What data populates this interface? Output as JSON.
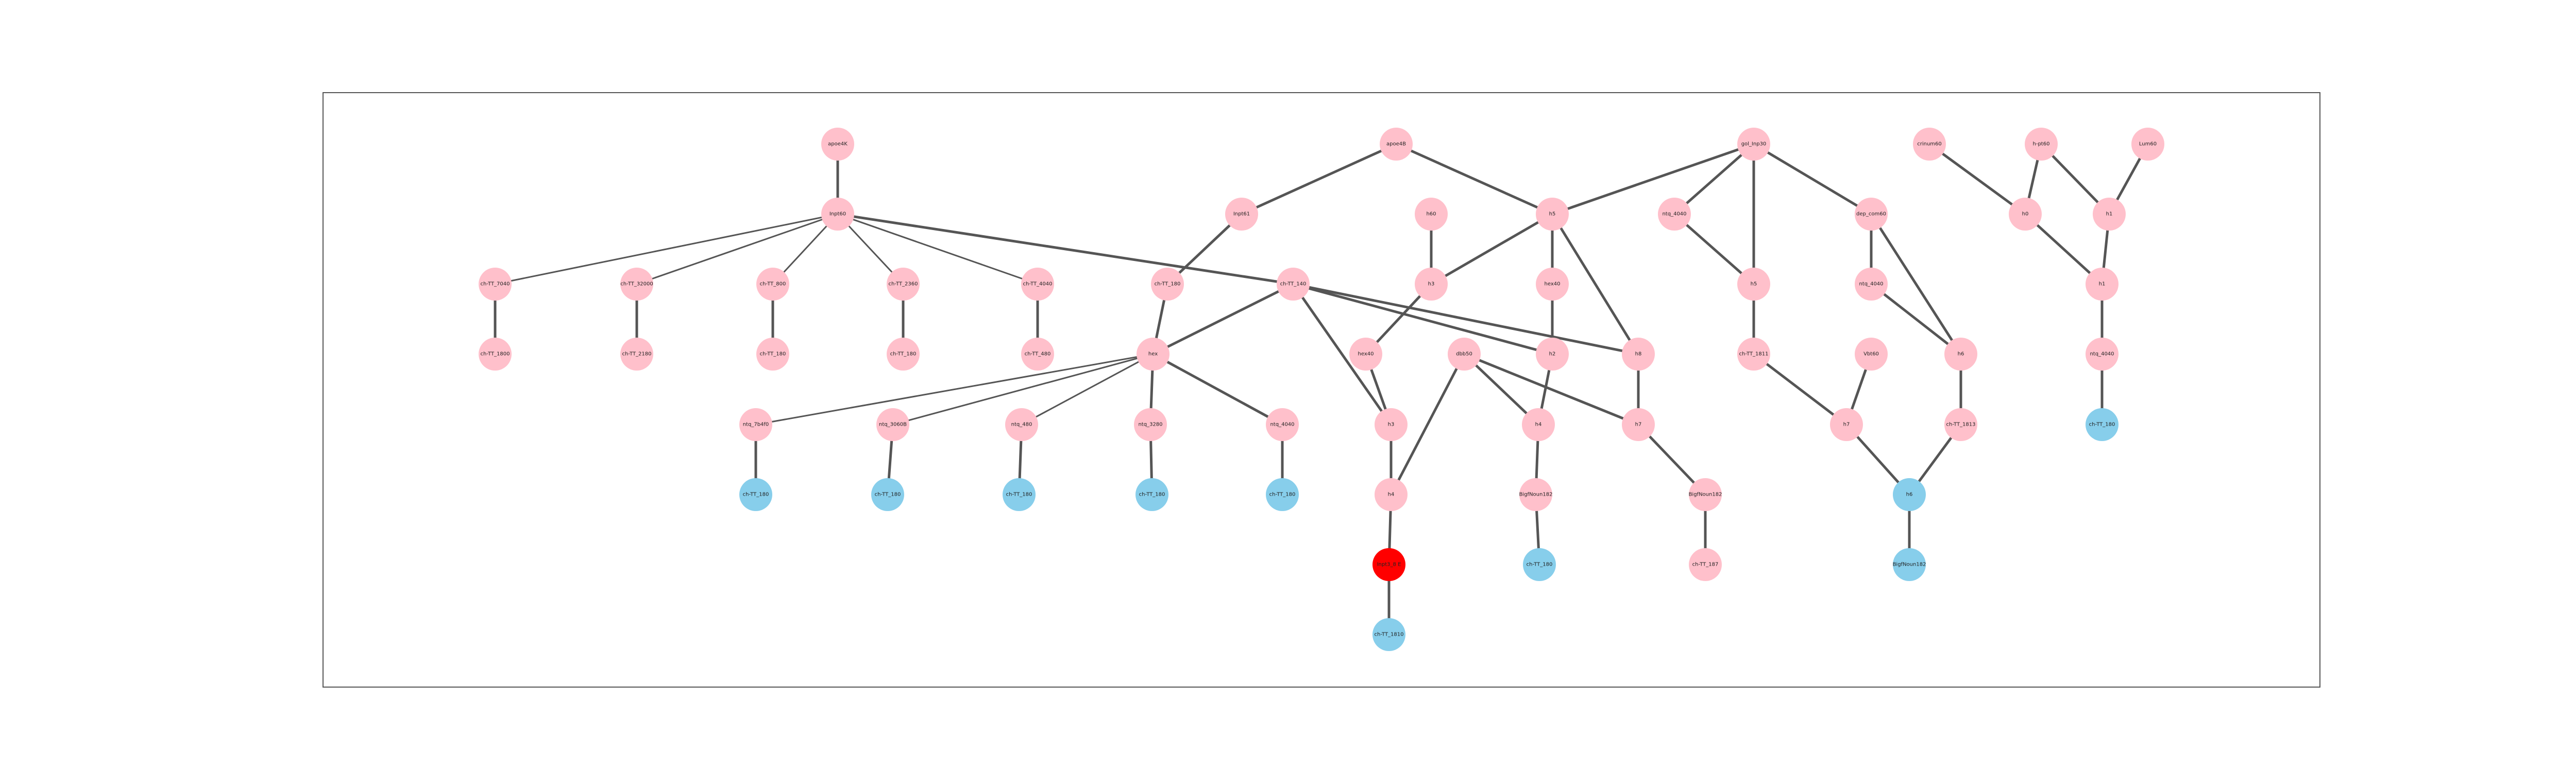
{
  "diagram": {
    "title": "",
    "colors": {
      "pink": "#ffc0cb",
      "blue": "#87ceeb",
      "red": "#ff0000",
      "edge": "#555555",
      "frame": "#555555"
    },
    "nodes": [
      {
        "id": "n1",
        "label": "apoe4K",
        "color": "pink"
      },
      {
        "id": "n2",
        "label": "Inpt60",
        "color": "pink"
      },
      {
        "id": "n3",
        "label": "ch-TT_7040",
        "color": "pink"
      },
      {
        "id": "n4",
        "label": "ch-TT_1800",
        "color": "pink"
      },
      {
        "id": "n5",
        "label": "ch-TT_32000",
        "color": "pink"
      },
      {
        "id": "n6",
        "label": "ch-TT_2180",
        "color": "pink"
      },
      {
        "id": "n7",
        "label": "ch-TT_800",
        "color": "pink"
      },
      {
        "id": "n8",
        "label": "ch-TT_180",
        "color": "pink"
      },
      {
        "id": "n9",
        "label": "ch-TT_2360",
        "color": "pink"
      },
      {
        "id": "n10",
        "label": "ch-TT_180",
        "color": "pink"
      },
      {
        "id": "n11",
        "label": "ch-TT_4040",
        "color": "pink"
      },
      {
        "id": "n12",
        "label": "ch-TT_480",
        "color": "pink"
      },
      {
        "id": "n13",
        "label": "apoe4B",
        "color": "pink"
      },
      {
        "id": "n14",
        "label": "Inpt61",
        "color": "pink"
      },
      {
        "id": "n15",
        "label": "ch-TT_180",
        "color": "pink"
      },
      {
        "id": "n16",
        "label": "ch-TT_140",
        "color": "pink"
      },
      {
        "id": "n17",
        "label": "hex",
        "color": "pink"
      },
      {
        "id": "n18",
        "label": "ntq_7b4f0",
        "color": "pink"
      },
      {
        "id": "n19",
        "label": "ntq_3060B",
        "color": "pink"
      },
      {
        "id": "n20",
        "label": "ntq_480",
        "color": "pink"
      },
      {
        "id": "n21",
        "label": "ntq_3280",
        "color": "pink"
      },
      {
        "id": "n22",
        "label": "ntq_4040",
        "color": "pink"
      },
      {
        "id": "n23",
        "label": "ch-TT_180",
        "color": "blue"
      },
      {
        "id": "n24",
        "label": "ch-TT_180",
        "color": "blue"
      },
      {
        "id": "n25",
        "label": "ch-TT_180",
        "color": "blue"
      },
      {
        "id": "n26",
        "label": "ch-TT_180",
        "color": "blue"
      },
      {
        "id": "n27",
        "label": "ch-TT_180",
        "color": "blue"
      },
      {
        "id": "n28",
        "label": "h60",
        "color": "pink"
      },
      {
        "id": "n29",
        "label": "h3",
        "color": "pink"
      },
      {
        "id": "n30",
        "label": "hex40",
        "color": "pink"
      },
      {
        "id": "n31",
        "label": "h3",
        "color": "pink"
      },
      {
        "id": "n32",
        "label": "h4",
        "color": "pink"
      },
      {
        "id": "n33",
        "label": "Inpt3_8 E",
        "color": "red"
      },
      {
        "id": "n34",
        "label": "ch-TT_1810",
        "color": "blue"
      },
      {
        "id": "n35",
        "label": "dbb50",
        "color": "pink"
      },
      {
        "id": "n36",
        "label": "h5",
        "color": "pink"
      },
      {
        "id": "n37",
        "label": "hex40",
        "color": "pink"
      },
      {
        "id": "n38",
        "label": "h2",
        "color": "pink"
      },
      {
        "id": "n39",
        "label": "h4",
        "color": "pink"
      },
      {
        "id": "n40",
        "label": "BigfNoun182",
        "color": "pink"
      },
      {
        "id": "n41",
        "label": "ch-TT_180",
        "color": "blue"
      },
      {
        "id": "n42",
        "label": "h8",
        "color": "pink"
      },
      {
        "id": "n43",
        "label": "h7",
        "color": "pink"
      },
      {
        "id": "n44",
        "label": "BigfNoun182",
        "color": "pink"
      },
      {
        "id": "n45",
        "label": "ch-TT_187",
        "color": "pink"
      },
      {
        "id": "n46",
        "label": "gol_Inp30",
        "color": "pink"
      },
      {
        "id": "n47",
        "label": "ntq_4040",
        "color": "pink"
      },
      {
        "id": "n48",
        "label": "h5",
        "color": "pink"
      },
      {
        "id": "n49",
        "label": "ch-TT_1811",
        "color": "pink"
      },
      {
        "id": "n50",
        "label": "dep_com60",
        "color": "pink"
      },
      {
        "id": "n51",
        "label": "ntq_4040",
        "color": "pink"
      },
      {
        "id": "n52",
        "label": "Vbt60",
        "color": "pink"
      },
      {
        "id": "n53",
        "label": "h7",
        "color": "pink"
      },
      {
        "id": "n54",
        "label": "h6",
        "color": "pink"
      },
      {
        "id": "n55",
        "label": "ch-TT_1813",
        "color": "pink"
      },
      {
        "id": "n56",
        "label": "h6",
        "color": "blue"
      },
      {
        "id": "n57",
        "label": "BigfNoun182",
        "color": "blue"
      },
      {
        "id": "n58",
        "label": "crinum60",
        "color": "pink"
      },
      {
        "id": "n59",
        "label": "h-pt60",
        "color": "pink"
      },
      {
        "id": "n60",
        "label": "Lum60",
        "color": "pink"
      },
      {
        "id": "n61",
        "label": "h0",
        "color": "pink"
      },
      {
        "id": "n62",
        "label": "h1",
        "color": "pink"
      },
      {
        "id": "n63",
        "label": "h1",
        "color": "pink"
      },
      {
        "id": "n64",
        "label": "ntq_4040",
        "color": "pink"
      },
      {
        "id": "n65",
        "label": "ch-TT_180",
        "color": "blue"
      }
    ],
    "edges": [
      [
        "n1",
        "n2"
      ],
      [
        "n2",
        "n3",
        1
      ],
      [
        "n2",
        "n5",
        1
      ],
      [
        "n2",
        "n7",
        1
      ],
      [
        "n2",
        "n9",
        1
      ],
      [
        "n2",
        "n11",
        1
      ],
      [
        "n2",
        "n16"
      ],
      [
        "n3",
        "n4"
      ],
      [
        "n5",
        "n6"
      ],
      [
        "n7",
        "n8"
      ],
      [
        "n9",
        "n10"
      ],
      [
        "n11",
        "n12"
      ],
      [
        "n13",
        "n14"
      ],
      [
        "n13",
        "n36"
      ],
      [
        "n14",
        "n15"
      ],
      [
        "n15",
        "n17"
      ],
      [
        "n16",
        "n17"
      ],
      [
        "n16",
        "n31"
      ],
      [
        "n16",
        "n38"
      ],
      [
        "n16",
        "n42"
      ],
      [
        "n17",
        "n18",
        1
      ],
      [
        "n17",
        "n19",
        1
      ],
      [
        "n17",
        "n20",
        1
      ],
      [
        "n17",
        "n21"
      ],
      [
        "n17",
        "n22"
      ],
      [
        "n18",
        "n23"
      ],
      [
        "n19",
        "n24"
      ],
      [
        "n20",
        "n25"
      ],
      [
        "n21",
        "n26"
      ],
      [
        "n22",
        "n27"
      ],
      [
        "n28",
        "n29"
      ],
      [
        "n29",
        "n30"
      ],
      [
        "n29",
        "n36"
      ],
      [
        "n30",
        "n31"
      ],
      [
        "n31",
        "n32"
      ],
      [
        "n32",
        "n33"
      ],
      [
        "n33",
        "n34"
      ],
      [
        "n35",
        "n32"
      ],
      [
        "n35",
        "n39"
      ],
      [
        "n35",
        "n43"
      ],
      [
        "n36",
        "n37"
      ],
      [
        "n36",
        "n42"
      ],
      [
        "n37",
        "n38"
      ],
      [
        "n38",
        "n39"
      ],
      [
        "n39",
        "n40"
      ],
      [
        "n40",
        "n41"
      ],
      [
        "n42",
        "n43"
      ],
      [
        "n43",
        "n44"
      ],
      [
        "n44",
        "n45"
      ],
      [
        "n46",
        "n36"
      ],
      [
        "n46",
        "n47"
      ],
      [
        "n46",
        "n48"
      ],
      [
        "n46",
        "n50"
      ],
      [
        "n47",
        "n48"
      ],
      [
        "n48",
        "n49"
      ],
      [
        "n49",
        "n53"
      ],
      [
        "n50",
        "n51"
      ],
      [
        "n50",
        "n54"
      ],
      [
        "n51",
        "n54"
      ],
      [
        "n52",
        "n53"
      ],
      [
        "n53",
        "n56"
      ],
      [
        "n54",
        "n55"
      ],
      [
        "n55",
        "n56"
      ],
      [
        "n56",
        "n57"
      ],
      [
        "n58",
        "n61"
      ],
      [
        "n59",
        "n61"
      ],
      [
        "n59",
        "n62"
      ],
      [
        "n60",
        "n62"
      ],
      [
        "n61",
        "n63"
      ],
      [
        "n62",
        "n63"
      ],
      [
        "n63",
        "n64"
      ],
      [
        "n64",
        "n65"
      ]
    ]
  }
}
